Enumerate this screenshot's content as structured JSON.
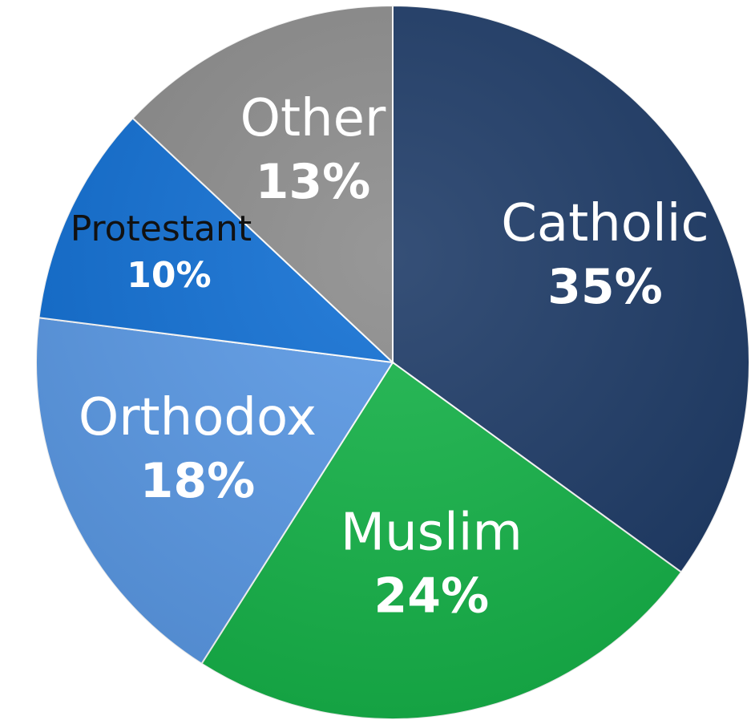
{
  "chart_data": {
    "type": "pie",
    "title": "",
    "start_angle_deg": 0,
    "direction": "clockwise",
    "slices": [
      {
        "label": "Catholic",
        "value": 35,
        "value_label": "35%",
        "color": "#1f3c68",
        "text_color": "#ffffff"
      },
      {
        "label": "Muslim",
        "value": 24,
        "value_label": "24%",
        "color": "#17b44a",
        "text_color": "#ffffff"
      },
      {
        "label": "Orthodox",
        "value": 18,
        "value_label": "18%",
        "color": "#5b9ae6",
        "text_color": "#ffffff"
      },
      {
        "label": "Protestant",
        "value": 10,
        "value_label": "10%",
        "color": "#1270d4",
        "text_color": "#111111",
        "value_text_color": "#ffffff"
      },
      {
        "label": "Other",
        "value": 13,
        "value_label": "13%",
        "color": "#8c8c8c",
        "text_color": "#ffffff"
      }
    ]
  }
}
